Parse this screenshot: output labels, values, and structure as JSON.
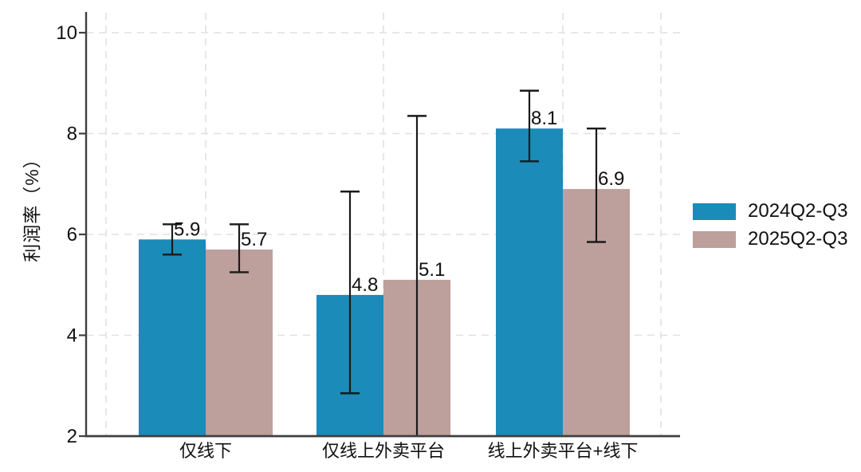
{
  "chart_data": {
    "type": "bar",
    "title": "",
    "xlabel": "",
    "ylabel": "利润率（%）",
    "categories": [
      "仅线下",
      "仅线上外卖平台",
      "线上外卖平台+线下"
    ],
    "series": [
      {
        "name": "2024Q2-Q3",
        "color": "#1b8bb9",
        "values": [
          5.9,
          4.8,
          8.1
        ],
        "ci_low": [
          5.6,
          2.85,
          7.45
        ],
        "ci_high": [
          6.2,
          6.85,
          8.85
        ],
        "ci_low_clipped": [
          false,
          false,
          false
        ]
      },
      {
        "name": "2025Q2-Q3",
        "color": "#bd9f9c",
        "values": [
          5.7,
          5.1,
          6.9
        ],
        "ci_low": [
          5.25,
          2.0,
          5.85
        ],
        "ci_high": [
          6.2,
          8.35,
          8.1
        ],
        "ci_low_clipped": [
          false,
          true,
          false
        ]
      }
    ],
    "value_labels": [
      [
        "5.9",
        "4.8",
        "8.1"
      ],
      [
        "5.7",
        "5.1",
        "6.9"
      ]
    ],
    "ylim": [
      2,
      10
    ],
    "yticks": [
      2,
      4,
      6,
      8,
      10
    ],
    "grid": "dashed",
    "error_bars": true,
    "legend_position": "right"
  },
  "colors": {
    "background": "#ffffff",
    "axis": "#3f3f3f",
    "grid": "#e2e0e0",
    "error_bar": "#1a1a1a",
    "text": "#111111"
  }
}
